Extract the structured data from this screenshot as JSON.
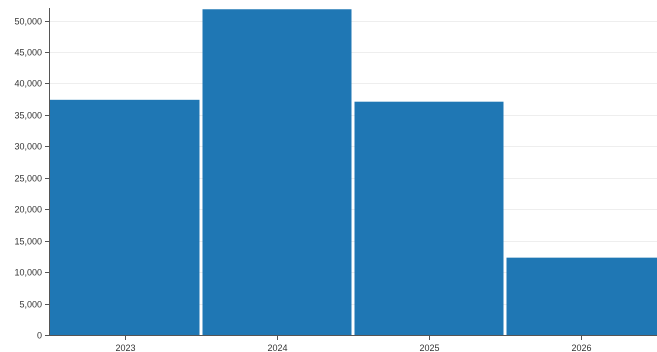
{
  "chart_data": {
    "type": "bar",
    "categories": [
      "2023",
      "2024",
      "2025",
      "2026"
    ],
    "values": [
      37400,
      51800,
      37100,
      12300
    ],
    "ylim": [
      0,
      52000
    ],
    "yticks": [
      0,
      5000,
      10000,
      15000,
      20000,
      25000,
      30000,
      35000,
      40000,
      45000,
      50000
    ],
    "ytick_labels": [
      "0",
      "5,000",
      "10,000",
      "15,000",
      "20,000",
      "25,000",
      "30,000",
      "35,000",
      "40,000",
      "45,000",
      "50,000"
    ],
    "title": "",
    "xlabel": "",
    "ylabel": "",
    "grid": true,
    "bar_color": "#1f77b4",
    "bar_gap_color": "#ffffff"
  }
}
